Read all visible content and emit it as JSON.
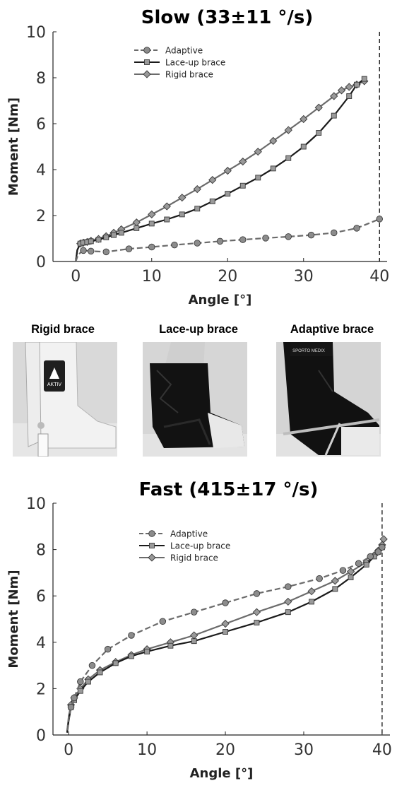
{
  "chart_data": [
    {
      "type": "line",
      "title": "Slow (33±11 °/s)",
      "xlabel": "Angle [°]",
      "ylabel": "Moment [Nm]",
      "xlim": [
        -3,
        41
      ],
      "ylim": [
        0,
        10
      ],
      "xticks": [
        "0",
        "10",
        "20",
        "30",
        "40"
      ],
      "yticks": [
        "0",
        "2",
        "4",
        "6",
        "8",
        "10"
      ],
      "vline_x": 40,
      "legend_position": "top-left",
      "series": [
        {
          "name": "Adaptive",
          "color": "#6b6b6b",
          "dash": "dashed",
          "marker": "circle",
          "x": [
            0,
            0.3,
            1,
            2,
            4,
            7,
            10,
            13,
            16,
            19,
            22,
            25,
            28,
            31,
            34,
            37,
            40
          ],
          "y": [
            0,
            0.3,
            0.48,
            0.45,
            0.42,
            0.55,
            0.63,
            0.72,
            0.8,
            0.88,
            0.95,
            1.02,
            1.08,
            1.15,
            1.25,
            1.45,
            1.85
          ]
        },
        {
          "name": "Lace-up brace",
          "color": "#1a1a1a",
          "dash": "solid",
          "marker": "square",
          "x": [
            0,
            0.2,
            0.6,
            1,
            1.5,
            2,
            3,
            4,
            5,
            6,
            8,
            10,
            12,
            14,
            16,
            18,
            20,
            22,
            24,
            26,
            28,
            30,
            32,
            34,
            36,
            37,
            38
          ],
          "y": [
            0,
            0.5,
            0.78,
            0.82,
            0.85,
            0.88,
            0.95,
            1.05,
            1.15,
            1.25,
            1.45,
            1.65,
            1.83,
            2.05,
            2.3,
            2.62,
            2.95,
            3.3,
            3.65,
            4.05,
            4.5,
            5.0,
            5.6,
            6.35,
            7.2,
            7.7,
            7.95
          ]
        },
        {
          "name": "Rigid brace",
          "color": "#6b6b6b",
          "dash": "solid",
          "marker": "diamond",
          "x": [
            0,
            0.2,
            0.6,
            1,
            1.5,
            2,
            3,
            4,
            5,
            6,
            8,
            10,
            12,
            14,
            16,
            18,
            20,
            22,
            24,
            26,
            28,
            30,
            32,
            34,
            35,
            36,
            37,
            38
          ],
          "y": [
            0,
            0.5,
            0.78,
            0.82,
            0.85,
            0.9,
            0.98,
            1.1,
            1.25,
            1.4,
            1.7,
            2.05,
            2.4,
            2.78,
            3.15,
            3.55,
            3.95,
            4.35,
            4.78,
            5.25,
            5.72,
            6.2,
            6.7,
            7.2,
            7.45,
            7.6,
            7.7,
            7.85
          ]
        }
      ]
    },
    {
      "type": "line",
      "title": "Fast (415±17 °/s)",
      "xlabel": "Angle [°]",
      "ylabel": "Moment [Nm]",
      "xlim": [
        -2,
        41
      ],
      "ylim": [
        0,
        10
      ],
      "xticks": [
        "0",
        "10",
        "20",
        "30",
        "40"
      ],
      "yticks": [
        "0",
        "2",
        "4",
        "6",
        "8",
        "10"
      ],
      "vline_x": 40,
      "legend_position": "top-left",
      "series": [
        {
          "name": "Adaptive",
          "color": "#6b6b6b",
          "dash": "dashed",
          "marker": "circle",
          "x": [
            -0.2,
            0,
            0.3,
            0.7,
            1.5,
            3,
            5,
            8,
            12,
            16,
            20,
            24,
            28,
            32,
            35,
            37,
            38.5,
            39.5,
            40
          ],
          "y": [
            0.2,
            0.7,
            1.2,
            1.6,
            2.3,
            3.0,
            3.7,
            4.3,
            4.9,
            5.3,
            5.7,
            6.1,
            6.4,
            6.75,
            7.1,
            7.4,
            7.7,
            7.9,
            8.1
          ]
        },
        {
          "name": "Lace-up brace",
          "color": "#1a1a1a",
          "dash": "solid",
          "marker": "square",
          "x": [
            -0.2,
            0,
            0.3,
            0.7,
            1.5,
            2.5,
            4,
            6,
            8,
            10,
            13,
            16,
            20,
            24,
            28,
            31,
            34,
            36,
            38,
            39,
            39.5,
            40
          ],
          "y": [
            0.1,
            0.6,
            1.2,
            1.5,
            1.9,
            2.3,
            2.7,
            3.1,
            3.4,
            3.6,
            3.85,
            4.05,
            4.45,
            4.85,
            5.3,
            5.75,
            6.3,
            6.8,
            7.35,
            7.7,
            7.9,
            8.1
          ]
        },
        {
          "name": "Rigid brace",
          "color": "#6b6b6b",
          "dash": "solid",
          "marker": "diamond",
          "x": [
            -0.2,
            0,
            0.3,
            0.7,
            1.5,
            2.5,
            4,
            6,
            8,
            10,
            13,
            16,
            20,
            24,
            28,
            31,
            34,
            36,
            38,
            39,
            39.5,
            40,
            40.2
          ],
          "y": [
            0.1,
            0.8,
            1.3,
            1.6,
            2.0,
            2.4,
            2.8,
            3.15,
            3.45,
            3.7,
            4.0,
            4.3,
            4.8,
            5.3,
            5.75,
            6.2,
            6.65,
            7.05,
            7.45,
            7.75,
            7.95,
            8.2,
            8.45
          ]
        }
      ]
    }
  ],
  "photos": {
    "items": [
      {
        "label": "Rigid brace"
      },
      {
        "label": "Lace-up brace"
      },
      {
        "label": "Adaptive brace"
      }
    ],
    "rigid": {
      "logo_text": "AKTIV"
    },
    "adaptive": {
      "logo_text": "SPORTO MEDIX"
    }
  }
}
